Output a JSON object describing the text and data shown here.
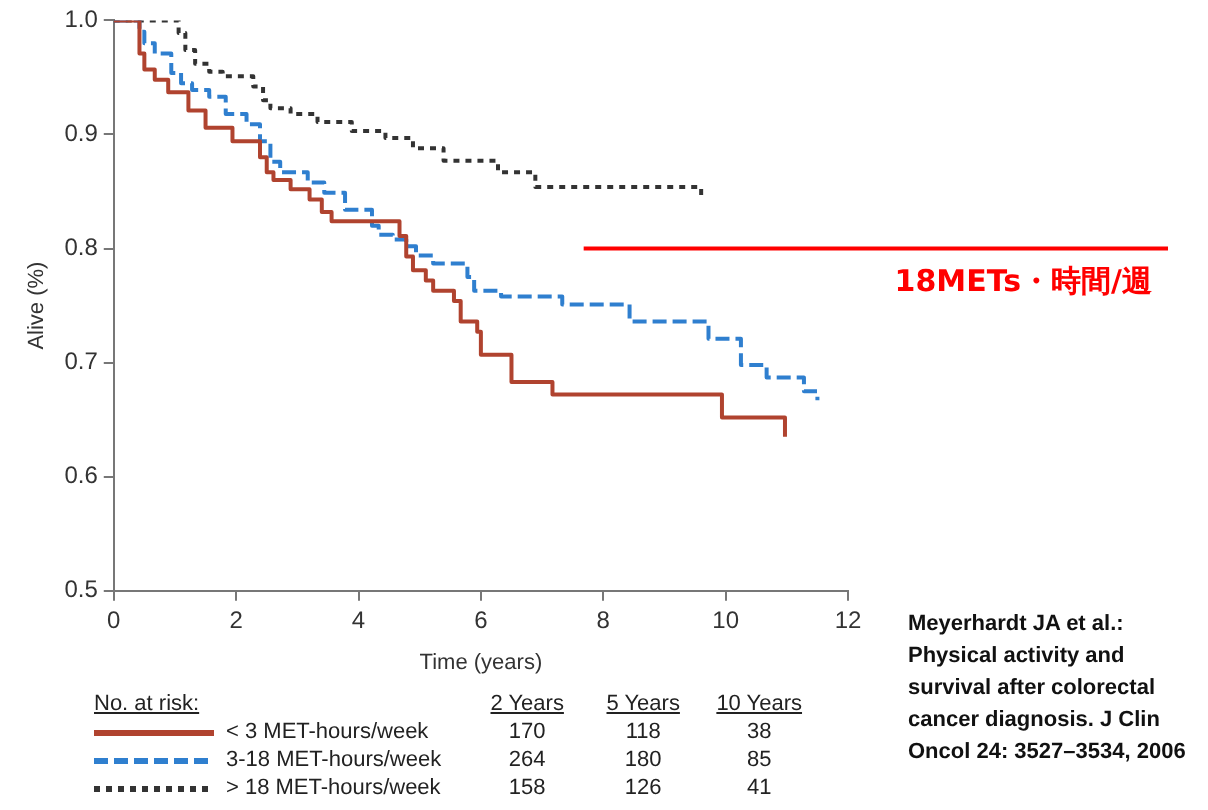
{
  "chart_data": {
    "type": "step",
    "xlabel": "Time (years)",
    "ylabel": "Alive (%)",
    "xlim": [
      0,
      12
    ],
    "xticks": [
      0,
      2,
      4,
      6,
      8,
      10,
      12
    ],
    "ylim": [
      0.5,
      1.0
    ],
    "yticks": [
      {
        "value": 0.5,
        "label": "0.5"
      },
      {
        "value": 0.6,
        "label": "0.6"
      },
      {
        "value": 0.7,
        "label": "0.7"
      },
      {
        "value": 0.8,
        "label": "0.8"
      },
      {
        "value": 0.9,
        "label": "0.9"
      },
      {
        "value": 1.0,
        "label": "1.0"
      }
    ],
    "grid": false,
    "legend": "bottom",
    "marker": "none",
    "series": [
      {
        "name": "< 3 MET-hours/week",
        "color": "#b0432f",
        "line_style": "solid",
        "x": [
          0,
          0.42,
          0.5,
          0.67,
          0.89,
          1.22,
          1.5,
          1.94,
          2.39,
          2.5,
          2.61,
          2.89,
          3.2,
          3.4,
          3.56,
          4.67,
          4.78,
          4.89,
          5.1,
          5.22,
          5.56,
          5.67,
          5.94,
          6.0,
          6.5,
          7.17,
          9.94,
          10.97,
          10.97
        ],
        "values": [
          1.0,
          0.971,
          0.957,
          0.948,
          0.937,
          0.921,
          0.906,
          0.894,
          0.88,
          0.867,
          0.86,
          0.852,
          0.843,
          0.832,
          0.824,
          0.811,
          0.793,
          0.781,
          0.772,
          0.763,
          0.754,
          0.736,
          0.727,
          0.707,
          0.683,
          0.672,
          0.652,
          0.652,
          0.635
        ]
      },
      {
        "name": "3-18 MET-hours/week",
        "color": "#2f7fcf",
        "line_style": "dashed",
        "x": [
          0,
          0.42,
          0.5,
          0.67,
          0.94,
          1.1,
          1.28,
          1.56,
          1.83,
          2.17,
          2.39,
          2.56,
          2.72,
          3.17,
          3.44,
          3.78,
          4.22,
          4.33,
          4.56,
          4.78,
          4.94,
          5.22,
          5.78,
          5.89,
          6.33,
          7.33,
          8.43,
          9.72,
          10.25,
          10.67,
          11.28,
          11.5,
          11.5
        ],
        "values": [
          1.0,
          0.99,
          0.98,
          0.971,
          0.954,
          0.945,
          0.939,
          0.933,
          0.918,
          0.909,
          0.894,
          0.876,
          0.867,
          0.858,
          0.849,
          0.834,
          0.82,
          0.812,
          0.808,
          0.802,
          0.794,
          0.787,
          0.775,
          0.763,
          0.758,
          0.751,
          0.736,
          0.721,
          0.698,
          0.687,
          0.675,
          0.675,
          0.667
        ]
      },
      {
        "name": "> 18 MET-hours/week",
        "color": "#333333",
        "line_style": "dotted",
        "x": [
          0,
          1.06,
          1.17,
          1.33,
          1.56,
          1.78,
          2.28,
          2.44,
          2.56,
          2.89,
          3.33,
          3.89,
          4.44,
          4.89,
          5.39,
          6.28,
          6.89,
          8.5,
          9.6,
          9.6
        ],
        "values": [
          1.0,
          0.989,
          0.974,
          0.962,
          0.955,
          0.951,
          0.942,
          0.93,
          0.923,
          0.918,
          0.911,
          0.903,
          0.897,
          0.888,
          0.877,
          0.867,
          0.854,
          0.854,
          0.843,
          0.843
        ]
      }
    ],
    "ref_lines": [
      {
        "axis": "y",
        "value": 0.8,
        "label": "18METs・時間/週",
        "color": "#ff0000"
      }
    ],
    "annotations": [
      "No. at risk:",
      "2 Years",
      "5 Years",
      "10 Years",
      "170",
      "118",
      "38",
      "264",
      "180",
      "85",
      "158",
      "126",
      "41",
      "Meyerhardt JA et al.: Physical activity and survival after colorectal cancer diagnosis. J Clin Oncol 24: 3527–3534, 2006"
    ]
  }
}
